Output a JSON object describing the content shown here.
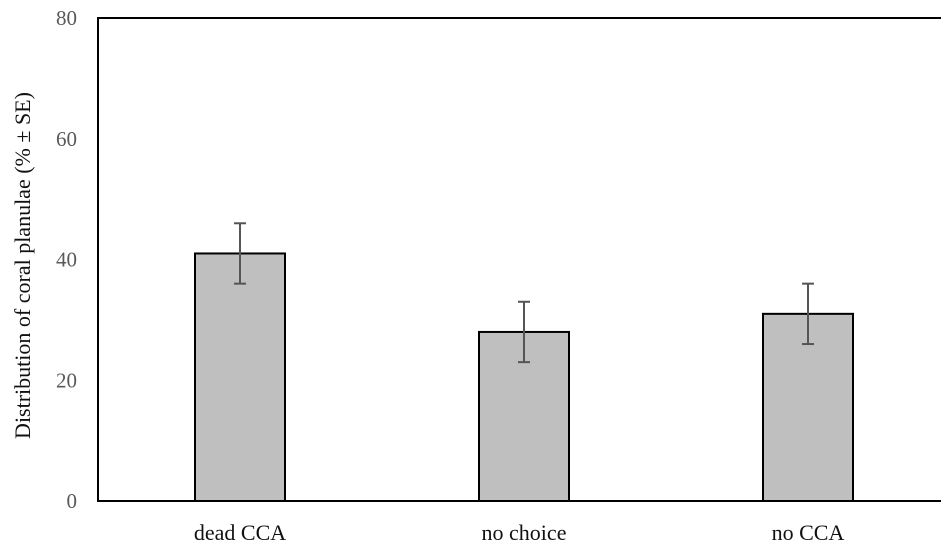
{
  "chart_data": {
    "type": "bar",
    "title": "",
    "xlabel": "",
    "ylabel": "Distribution of coral planulae (% ± SE)",
    "categories": [
      "dead CCA",
      "no choice",
      "no CCA"
    ],
    "series": [
      {
        "values": [
          41,
          28,
          31
        ],
        "errors": [
          5,
          5,
          5
        ],
        "color": "#bfbfbf"
      }
    ],
    "ylim": [
      0,
      80
    ],
    "yticks": [
      "0",
      "20",
      "40",
      "60",
      "80"
    ],
    "grid": false,
    "legend": "none",
    "colors": {
      "bar_fill": "#bfbfbf",
      "bar_stroke": "#000000",
      "error_bar": "#555555",
      "axis": "#000000"
    }
  }
}
